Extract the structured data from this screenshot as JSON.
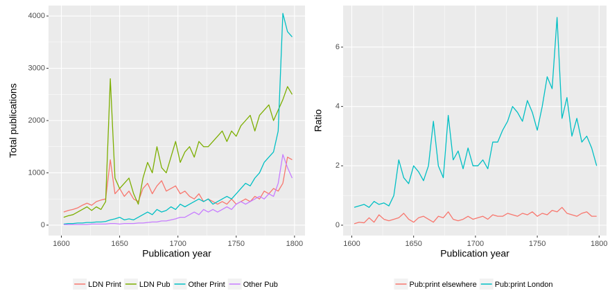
{
  "chart_data": [
    {
      "type": "line",
      "x_label": "Publication year",
      "y_label": "Total publications",
      "x": [
        1602,
        1606,
        1610,
        1614,
        1618,
        1622,
        1626,
        1630,
        1634,
        1638,
        1642,
        1646,
        1650,
        1654,
        1658,
        1662,
        1666,
        1670,
        1674,
        1678,
        1682,
        1686,
        1690,
        1694,
        1698,
        1702,
        1706,
        1710,
        1714,
        1718,
        1722,
        1726,
        1730,
        1734,
        1738,
        1742,
        1746,
        1750,
        1754,
        1758,
        1762,
        1766,
        1770,
        1774,
        1778,
        1782,
        1786,
        1790,
        1794,
        1798
      ],
      "xlim": [
        1589,
        1809
      ],
      "xticks": [
        1600,
        1650,
        1700,
        1750,
        1800
      ],
      "ylim": [
        -200,
        4200
      ],
      "yticks": [
        0,
        1000,
        2000,
        3000,
        4000
      ],
      "grid": true,
      "legend": "bottom",
      "series": [
        {
          "name": "LDN Print",
          "color": "#F8766D",
          "values": [
            250,
            280,
            300,
            330,
            380,
            420,
            380,
            450,
            480,
            500,
            1250,
            600,
            700,
            550,
            650,
            500,
            450,
            700,
            800,
            600,
            750,
            850,
            650,
            700,
            750,
            600,
            650,
            550,
            500,
            600,
            450,
            500,
            450,
            400,
            450,
            400,
            500,
            400,
            450,
            500,
            450,
            550,
            500,
            650,
            600,
            700,
            650,
            800,
            1300,
            1250
          ]
        },
        {
          "name": "LDN Pub",
          "color": "#7CAE00",
          "values": [
            150,
            180,
            200,
            250,
            300,
            350,
            280,
            350,
            300,
            450,
            2800,
            900,
            700,
            800,
            900,
            600,
            400,
            900,
            1200,
            1000,
            1500,
            1100,
            1000,
            1300,
            1600,
            1200,
            1400,
            1500,
            1300,
            1600,
            1500,
            1500,
            1600,
            1700,
            1800,
            1600,
            1800,
            1700,
            1900,
            2000,
            2100,
            1800,
            2100,
            2200,
            2300,
            2000,
            2200,
            2400,
            2650,
            2500
          ]
        },
        {
          "name": "Other Print",
          "color": "#00BFC4",
          "values": [
            20,
            30,
            30,
            40,
            40,
            50,
            50,
            60,
            60,
            70,
            100,
            120,
            150,
            100,
            120,
            100,
            150,
            200,
            250,
            200,
            300,
            250,
            280,
            350,
            300,
            400,
            350,
            400,
            450,
            500,
            450,
            500,
            400,
            450,
            500,
            550,
            500,
            600,
            700,
            800,
            750,
            900,
            1000,
            1200,
            1300,
            1400,
            1800,
            4050,
            3700,
            3600
          ]
        },
        {
          "name": "Other Pub",
          "color": "#C77CFF",
          "values": [
            10,
            10,
            10,
            10,
            10,
            10,
            20,
            20,
            20,
            20,
            30,
            30,
            20,
            30,
            30,
            30,
            40,
            40,
            50,
            60,
            60,
            80,
            80,
            100,
            120,
            150,
            150,
            200,
            250,
            200,
            300,
            250,
            300,
            250,
            300,
            350,
            300,
            400,
            450,
            400,
            450,
            500,
            550,
            500,
            600,
            550,
            800,
            1350,
            1100,
            900
          ]
        }
      ]
    },
    {
      "type": "line",
      "x_label": "Publication year",
      "y_label": "Ratio",
      "x": [
        1602,
        1606,
        1610,
        1614,
        1618,
        1622,
        1626,
        1630,
        1634,
        1638,
        1642,
        1646,
        1650,
        1654,
        1658,
        1662,
        1666,
        1670,
        1674,
        1678,
        1682,
        1686,
        1690,
        1694,
        1698,
        1702,
        1706,
        1710,
        1714,
        1718,
        1722,
        1726,
        1730,
        1734,
        1738,
        1742,
        1746,
        1750,
        1754,
        1758,
        1762,
        1766,
        1770,
        1774,
        1778,
        1782,
        1786,
        1790,
        1794,
        1798
      ],
      "xlim": [
        1593,
        1806
      ],
      "xticks": [
        1600,
        1650,
        1700,
        1750,
        1800
      ],
      "ylim": [
        -0.35,
        7.4
      ],
      "yticks": [
        0,
        2,
        4,
        6
      ],
      "grid": true,
      "legend": "bottom",
      "series": [
        {
          "name": "Pub:print elsewhere",
          "color": "#F8766D",
          "values": [
            0.05,
            0.1,
            0.08,
            0.25,
            0.1,
            0.35,
            0.2,
            0.15,
            0.2,
            0.25,
            0.4,
            0.2,
            0.1,
            0.25,
            0.3,
            0.2,
            0.1,
            0.3,
            0.25,
            0.45,
            0.2,
            0.15,
            0.2,
            0.3,
            0.2,
            0.25,
            0.3,
            0.2,
            0.35,
            0.3,
            0.3,
            0.4,
            0.35,
            0.3,
            0.4,
            0.35,
            0.45,
            0.3,
            0.4,
            0.35,
            0.5,
            0.45,
            0.6,
            0.4,
            0.35,
            0.3,
            0.4,
            0.45,
            0.3,
            0.3
          ]
        },
        {
          "name": "Pub:print London",
          "color": "#00BFC4",
          "values": [
            0.6,
            0.65,
            0.7,
            0.6,
            0.8,
            0.7,
            0.75,
            0.65,
            1.0,
            2.2,
            1.6,
            1.4,
            2.0,
            1.8,
            1.5,
            2.0,
            3.5,
            2.0,
            1.6,
            3.7,
            2.2,
            2.5,
            1.9,
            2.6,
            2.0,
            2.0,
            2.2,
            1.9,
            2.8,
            2.8,
            3.2,
            3.5,
            4.0,
            3.8,
            3.5,
            4.2,
            3.8,
            3.2,
            4.0,
            5.0,
            4.6,
            7.0,
            3.6,
            4.3,
            3.0,
            3.6,
            2.8,
            3.0,
            2.6,
            2.0
          ]
        }
      ]
    }
  ]
}
